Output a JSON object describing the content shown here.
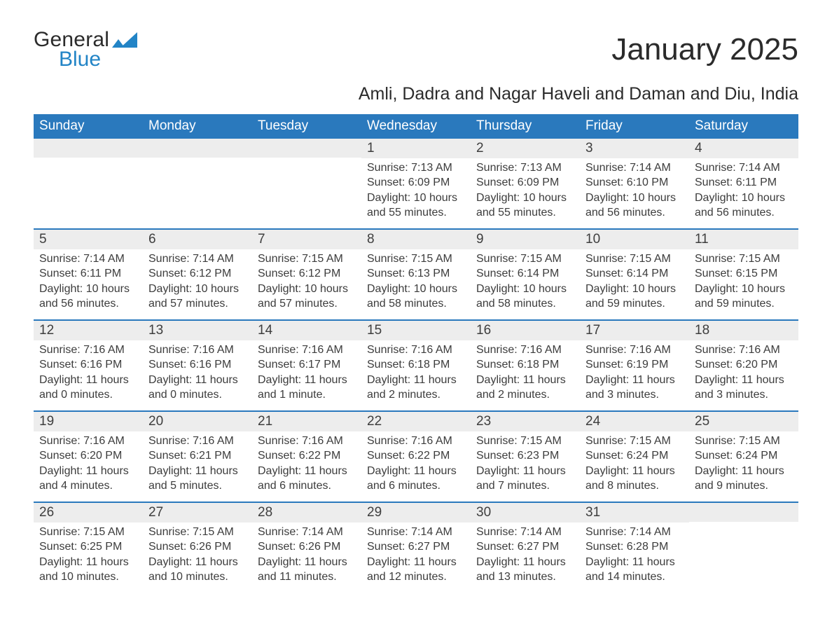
{
  "logo": {
    "word1": "General",
    "word2": "Blue",
    "flag_color": "#2284c6"
  },
  "title": "January 2025",
  "subtitle": "Amli, Dadra and Nagar Haveli and Daman and Diu, India",
  "colors": {
    "header_bg": "#2a79bd",
    "header_text": "#ffffff",
    "daynum_bg": "#ededed",
    "text": "#3c3c3c",
    "row_border": "#2a79bd",
    "logo_blue": "#2284c6"
  },
  "fonts": {
    "title_size": 44,
    "subtitle_size": 25,
    "header_size": 19,
    "daynum_size": 19,
    "body_size": 16
  },
  "calendar": {
    "weekday_labels": [
      "Sunday",
      "Monday",
      "Tuesday",
      "Wednesday",
      "Thursday",
      "Friday",
      "Saturday"
    ],
    "weeks": [
      [
        null,
        null,
        null,
        {
          "day": "1",
          "sunrise": "Sunrise: 7:13 AM",
          "sunset": "Sunset: 6:09 PM",
          "daylight1": "Daylight: 10 hours",
          "daylight2": "and 55 minutes."
        },
        {
          "day": "2",
          "sunrise": "Sunrise: 7:13 AM",
          "sunset": "Sunset: 6:09 PM",
          "daylight1": "Daylight: 10 hours",
          "daylight2": "and 55 minutes."
        },
        {
          "day": "3",
          "sunrise": "Sunrise: 7:14 AM",
          "sunset": "Sunset: 6:10 PM",
          "daylight1": "Daylight: 10 hours",
          "daylight2": "and 56 minutes."
        },
        {
          "day": "4",
          "sunrise": "Sunrise: 7:14 AM",
          "sunset": "Sunset: 6:11 PM",
          "daylight1": "Daylight: 10 hours",
          "daylight2": "and 56 minutes."
        }
      ],
      [
        {
          "day": "5",
          "sunrise": "Sunrise: 7:14 AM",
          "sunset": "Sunset: 6:11 PM",
          "daylight1": "Daylight: 10 hours",
          "daylight2": "and 56 minutes."
        },
        {
          "day": "6",
          "sunrise": "Sunrise: 7:14 AM",
          "sunset": "Sunset: 6:12 PM",
          "daylight1": "Daylight: 10 hours",
          "daylight2": "and 57 minutes."
        },
        {
          "day": "7",
          "sunrise": "Sunrise: 7:15 AM",
          "sunset": "Sunset: 6:12 PM",
          "daylight1": "Daylight: 10 hours",
          "daylight2": "and 57 minutes."
        },
        {
          "day": "8",
          "sunrise": "Sunrise: 7:15 AM",
          "sunset": "Sunset: 6:13 PM",
          "daylight1": "Daylight: 10 hours",
          "daylight2": "and 58 minutes."
        },
        {
          "day": "9",
          "sunrise": "Sunrise: 7:15 AM",
          "sunset": "Sunset: 6:14 PM",
          "daylight1": "Daylight: 10 hours",
          "daylight2": "and 58 minutes."
        },
        {
          "day": "10",
          "sunrise": "Sunrise: 7:15 AM",
          "sunset": "Sunset: 6:14 PM",
          "daylight1": "Daylight: 10 hours",
          "daylight2": "and 59 minutes."
        },
        {
          "day": "11",
          "sunrise": "Sunrise: 7:15 AM",
          "sunset": "Sunset: 6:15 PM",
          "daylight1": "Daylight: 10 hours",
          "daylight2": "and 59 minutes."
        }
      ],
      [
        {
          "day": "12",
          "sunrise": "Sunrise: 7:16 AM",
          "sunset": "Sunset: 6:16 PM",
          "daylight1": "Daylight: 11 hours",
          "daylight2": "and 0 minutes."
        },
        {
          "day": "13",
          "sunrise": "Sunrise: 7:16 AM",
          "sunset": "Sunset: 6:16 PM",
          "daylight1": "Daylight: 11 hours",
          "daylight2": "and 0 minutes."
        },
        {
          "day": "14",
          "sunrise": "Sunrise: 7:16 AM",
          "sunset": "Sunset: 6:17 PM",
          "daylight1": "Daylight: 11 hours",
          "daylight2": "and 1 minute."
        },
        {
          "day": "15",
          "sunrise": "Sunrise: 7:16 AM",
          "sunset": "Sunset: 6:18 PM",
          "daylight1": "Daylight: 11 hours",
          "daylight2": "and 2 minutes."
        },
        {
          "day": "16",
          "sunrise": "Sunrise: 7:16 AM",
          "sunset": "Sunset: 6:18 PM",
          "daylight1": "Daylight: 11 hours",
          "daylight2": "and 2 minutes."
        },
        {
          "day": "17",
          "sunrise": "Sunrise: 7:16 AM",
          "sunset": "Sunset: 6:19 PM",
          "daylight1": "Daylight: 11 hours",
          "daylight2": "and 3 minutes."
        },
        {
          "day": "18",
          "sunrise": "Sunrise: 7:16 AM",
          "sunset": "Sunset: 6:20 PM",
          "daylight1": "Daylight: 11 hours",
          "daylight2": "and 3 minutes."
        }
      ],
      [
        {
          "day": "19",
          "sunrise": "Sunrise: 7:16 AM",
          "sunset": "Sunset: 6:20 PM",
          "daylight1": "Daylight: 11 hours",
          "daylight2": "and 4 minutes."
        },
        {
          "day": "20",
          "sunrise": "Sunrise: 7:16 AM",
          "sunset": "Sunset: 6:21 PM",
          "daylight1": "Daylight: 11 hours",
          "daylight2": "and 5 minutes."
        },
        {
          "day": "21",
          "sunrise": "Sunrise: 7:16 AM",
          "sunset": "Sunset: 6:22 PM",
          "daylight1": "Daylight: 11 hours",
          "daylight2": "and 6 minutes."
        },
        {
          "day": "22",
          "sunrise": "Sunrise: 7:16 AM",
          "sunset": "Sunset: 6:22 PM",
          "daylight1": "Daylight: 11 hours",
          "daylight2": "and 6 minutes."
        },
        {
          "day": "23",
          "sunrise": "Sunrise: 7:15 AM",
          "sunset": "Sunset: 6:23 PM",
          "daylight1": "Daylight: 11 hours",
          "daylight2": "and 7 minutes."
        },
        {
          "day": "24",
          "sunrise": "Sunrise: 7:15 AM",
          "sunset": "Sunset: 6:24 PM",
          "daylight1": "Daylight: 11 hours",
          "daylight2": "and 8 minutes."
        },
        {
          "day": "25",
          "sunrise": "Sunrise: 7:15 AM",
          "sunset": "Sunset: 6:24 PM",
          "daylight1": "Daylight: 11 hours",
          "daylight2": "and 9 minutes."
        }
      ],
      [
        {
          "day": "26",
          "sunrise": "Sunrise: 7:15 AM",
          "sunset": "Sunset: 6:25 PM",
          "daylight1": "Daylight: 11 hours",
          "daylight2": "and 10 minutes."
        },
        {
          "day": "27",
          "sunrise": "Sunrise: 7:15 AM",
          "sunset": "Sunset: 6:26 PM",
          "daylight1": "Daylight: 11 hours",
          "daylight2": "and 10 minutes."
        },
        {
          "day": "28",
          "sunrise": "Sunrise: 7:14 AM",
          "sunset": "Sunset: 6:26 PM",
          "daylight1": "Daylight: 11 hours",
          "daylight2": "and 11 minutes."
        },
        {
          "day": "29",
          "sunrise": "Sunrise: 7:14 AM",
          "sunset": "Sunset: 6:27 PM",
          "daylight1": "Daylight: 11 hours",
          "daylight2": "and 12 minutes."
        },
        {
          "day": "30",
          "sunrise": "Sunrise: 7:14 AM",
          "sunset": "Sunset: 6:27 PM",
          "daylight1": "Daylight: 11 hours",
          "daylight2": "and 13 minutes."
        },
        {
          "day": "31",
          "sunrise": "Sunrise: 7:14 AM",
          "sunset": "Sunset: 6:28 PM",
          "daylight1": "Daylight: 11 hours",
          "daylight2": "and 14 minutes."
        },
        null
      ]
    ]
  }
}
